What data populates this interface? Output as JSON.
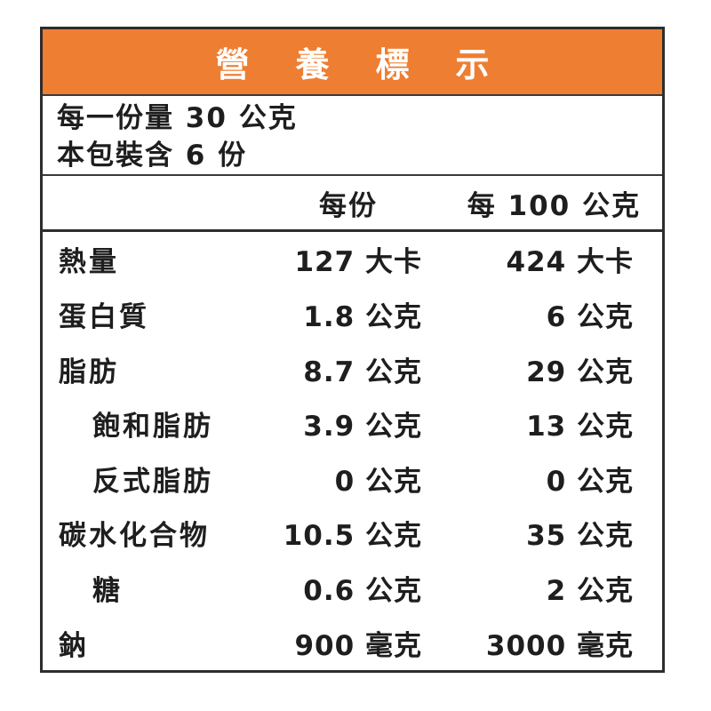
{
  "title": "營養標示",
  "serving_info": {
    "line1": "每一份量 30 公克",
    "line2": "本包裝含 6 份"
  },
  "columns": {
    "per_serving": "每份",
    "per_100g": "每 100 公克"
  },
  "rows": [
    {
      "label": "熱量",
      "indent": false,
      "per_serving": "127 大卡",
      "per_100g": "424 大卡"
    },
    {
      "label": "蛋白質",
      "indent": false,
      "per_serving": "1.8 公克",
      "per_100g": "6 公克"
    },
    {
      "label": "脂肪",
      "indent": false,
      "per_serving": "8.7 公克",
      "per_100g": "29 公克"
    },
    {
      "label": "飽和脂肪",
      "indent": true,
      "per_serving": "3.9 公克",
      "per_100g": "13 公克"
    },
    {
      "label": "反式脂肪",
      "indent": true,
      "per_serving": "0 公克",
      "per_100g": "0 公克"
    },
    {
      "label": "碳水化合物",
      "indent": false,
      "per_serving": "10.5 公克",
      "per_100g": "35 公克"
    },
    {
      "label": "糖",
      "indent": true,
      "per_serving": "0.6 公克",
      "per_100g": "2 公克"
    },
    {
      "label": "鈉",
      "indent": false,
      "per_serving": "900 毫克",
      "per_100g": "3000 毫克"
    }
  ],
  "colors": {
    "header_bg": "#EE7E31",
    "header_text": "#FFFFFF",
    "body_text": "#1E1E1E",
    "border": "#2D2D2D"
  }
}
